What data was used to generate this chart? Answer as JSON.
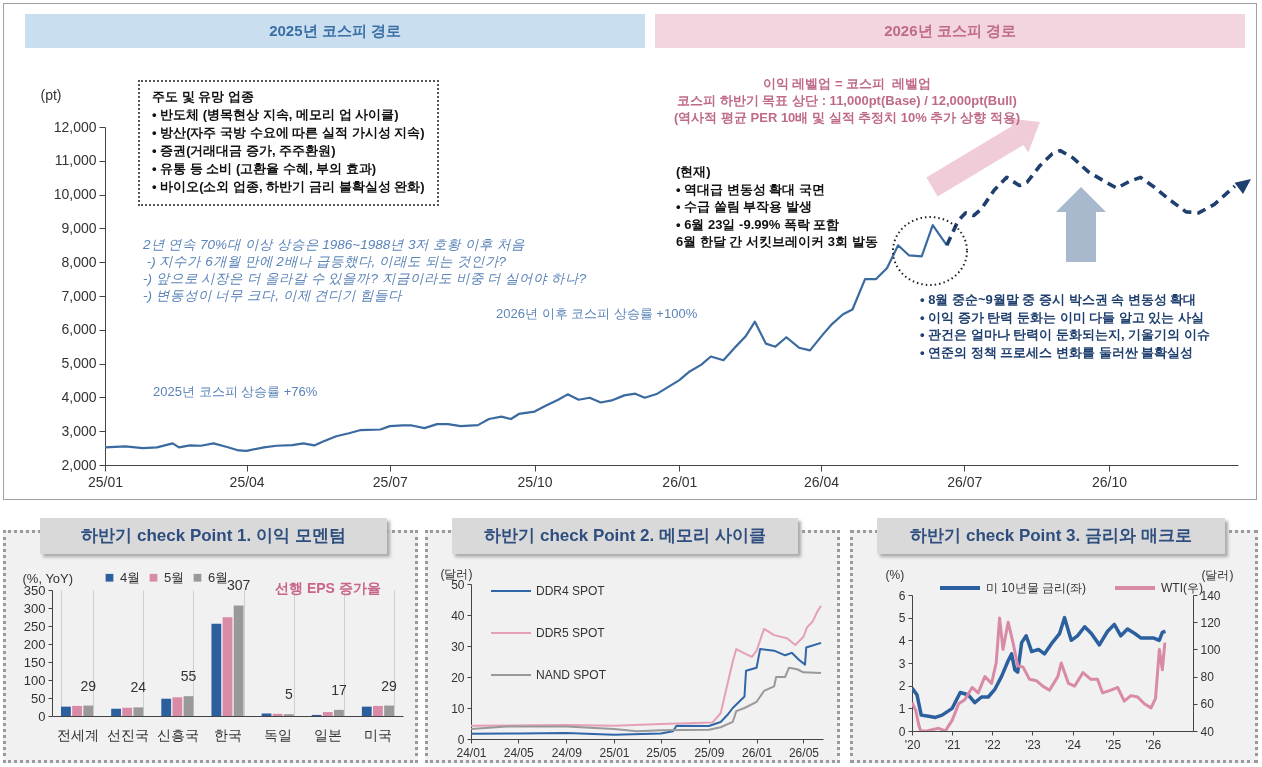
{
  "chart_data": [
    {
      "type": "line",
      "ylabel": "(pt)",
      "series": [
        {
          "color": "#3b6aa0",
          "x": [
            "2025-01-01",
            "2025-01-14",
            "2025-01-25",
            "2025-02-03",
            "2025-02-13",
            "2025-02-17",
            "2025-02-24",
            "2025-03-03",
            "2025-03-11",
            "2025-03-19",
            "2025-03-27",
            "2025-04-01",
            "2025-04-12",
            "2025-04-20",
            "2025-04-30",
            "2025-05-07",
            "2025-05-14",
            "2025-05-20",
            "2025-05-28",
            "2025-06-05",
            "2025-06-12",
            "2025-06-17",
            "2025-06-25",
            "2025-07-01",
            "2025-07-09",
            "2025-07-15",
            "2025-07-23",
            "2025-07-31",
            "2025-08-07",
            "2025-08-15",
            "2025-08-26",
            "2025-09-02",
            "2025-09-10",
            "2025-09-16",
            "2025-09-21",
            "2025-10-01",
            "2025-10-08",
            "2025-10-16",
            "2025-10-22",
            "2025-10-29",
            "2025-11-05",
            "2025-11-12",
            "2025-11-19",
            "2025-11-27",
            "2025-12-04",
            "2025-12-10",
            "2025-12-18",
            "2025-12-25",
            "2026-01-01",
            "2026-01-07",
            "2026-01-15",
            "2026-01-21",
            "2026-01-29",
            "2026-02-06",
            "2026-02-12",
            "2026-02-18",
            "2026-02-25",
            "2026-03-03",
            "2026-03-10",
            "2026-03-18",
            "2026-03-25",
            "2026-04-02",
            "2026-04-08",
            "2026-04-15",
            "2026-04-21",
            "2026-04-29",
            "2026-05-06",
            "2026-05-13",
            "2026-05-20",
            "2026-05-27",
            "2026-06-04",
            "2026-06-11",
            "2026-06-20"
          ],
          "values": [
            2520,
            2550,
            2500,
            2520,
            2640,
            2520,
            2580,
            2570,
            2640,
            2540,
            2430,
            2420,
            2520,
            2570,
            2590,
            2640,
            2580,
            2700,
            2850,
            2940,
            3030,
            3040,
            3050,
            3150,
            3170,
            3170,
            3090,
            3210,
            3210,
            3150,
            3180,
            3360,
            3430,
            3360,
            3510,
            3580,
            3750,
            3930,
            4090,
            3930,
            3990,
            3850,
            3910,
            4060,
            4110,
            3990,
            4110,
            4310,
            4510,
            4750,
            4970,
            5210,
            5100,
            5510,
            5800,
            6240,
            5590,
            5500,
            5780,
            5470,
            5390,
            5850,
            6170,
            6460,
            6600,
            7500,
            7500,
            7830,
            8500,
            8200,
            8170,
            9100,
            8500
          ]
        },
        {
          "color": "#1f3f6e",
          "line_style": "dashed",
          "x": [
            "2026-06-20",
            "2026-06-27",
            "2026-07-02",
            "2026-07-07",
            "2026-07-12",
            "2026-07-20",
            "2026-07-28",
            "2026-08-05",
            "2026-08-10",
            "2026-08-18",
            "2026-08-26",
            "2026-08-31",
            "2026-09-08",
            "2026-09-18",
            "2026-09-29",
            "2026-10-06",
            "2026-10-14",
            "2026-10-21",
            "2026-10-29",
            "2026-11-09",
            "2026-11-19",
            "2026-11-27",
            "2026-12-07",
            "2026-12-20"
          ],
          "values": [
            8500,
            9220,
            9460,
            9380,
            9580,
            10130,
            10510,
            10270,
            10370,
            10850,
            11210,
            11300,
            11090,
            10670,
            10370,
            10190,
            10390,
            10510,
            10250,
            9830,
            9490,
            9460,
            9710,
            10250
          ]
        }
      ],
      "xlim": [
        "2025-01-01",
        "2026-12-22"
      ],
      "xticks": [
        {
          "value": "2025-01",
          "label": "25/01"
        },
        {
          "value": "2025-04",
          "label": "25/04"
        },
        {
          "value": "2025-07",
          "label": "25/07"
        },
        {
          "value": "2025-10",
          "label": "25/10"
        },
        {
          "value": "2026-01",
          "label": "26/01"
        },
        {
          "value": "2026-04",
          "label": "26/04"
        },
        {
          "value": "2026-07",
          "label": "26/07"
        },
        {
          "value": "2026-10",
          "label": "26/10"
        }
      ],
      "ylim": [
        2000,
        12000
      ],
      "yticks": [
        {
          "value": 2000,
          "label": "2,000"
        },
        {
          "value": 3000,
          "label": "3,000"
        },
        {
          "value": 4000,
          "label": "4,000"
        },
        {
          "value": 5000,
          "label": "5,000"
        },
        {
          "value": 6000,
          "label": "6,000"
        },
        {
          "value": 7000,
          "label": "7,000"
        },
        {
          "value": 8000,
          "label": "8,000"
        },
        {
          "value": 9000,
          "label": "9,000"
        },
        {
          "value": 10000,
          "label": "10,000"
        },
        {
          "value": 11000,
          "label": "11,000"
        },
        {
          "value": 12000,
          "label": "12,000"
        }
      ],
      "annotations": [
        "2025년 코스피 경로",
        "2026년 코스피 경로",
        "주도 및 유망 업종\n• 반도체 (병목현상 지속, 메모리 업 사이클)\n• 방산(자주 국방 수요에 따른 실적 가시성 지속)\n• 증권(거래대금 증가, 주주환원)\n• 유통 등 소비 (고환율 수혜, 부의 효과)\n• 바이오(소외 업종, 하반기 금리 불확실성 완화)",
        "2년 연속 70%대 이상 상승은 1986~1988년 3저 호황 이후 처음\n -) 지수가 6개월 만에 2배나 급등했다, 이래도 되는 것인가?\n-) 앞으로 시장은 더 올라갈 수 있을까? 지금이라도 비중 더 실어야 하나?\n-) 변동성이 너무 크다, 이제 견디기 힘들다",
        "2025년 코스피 상승률 +76%",
        "2026년 이후 코스피 상승률 +100%",
        "이익 레벨업 = 코스피  레벨업\n코스피 하반기 목표 상단 : 11,000pt(Base) / 12,000pt(Bull)\n(역사적 평균 PER 10배 및 실적 추정치 10% 추가 상향 적용)",
        "(현재)\n• 역대급 변동성 확대 국면\n• 수급 쏠림 부작용 발생\n• 6월 23일 -9.99% 폭락 포함\n6월 한달 간 서킷브레이커 3회 발동",
        "• 8월 중순~9월말 중 증시 박스권 속 변동성 확대\n• 이익 증가 탄력 둔화는 이미 다들 알고 있는 사실\n• 관건은 얼마나 탄력이 둔화되는지, 기울기의 이슈\n• 연준의 정책 프로세스 변화를 둘러싼 불확실성"
      ]
    },
    {
      "type": "bar",
      "title": "하반기 check Point 1. 이익 모멘텀",
      "ylabel": "(%, YoY)",
      "categories": [
        "전세계",
        "선진국",
        "신흥국",
        "한국",
        "독일",
        "일본",
        "미국"
      ],
      "series": [
        {
          "name": "4월",
          "color": "#2b5f9e",
          "values": [
            26,
            20,
            48,
            256,
            7,
            3,
            26
          ]
        },
        {
          "name": "5월",
          "color": "#d98aa6",
          "values": [
            28,
            23,
            52,
            274,
            6,
            11,
            28
          ]
        },
        {
          "name": "6월",
          "color": "#999999",
          "values": [
            29,
            24,
            55,
            307,
            5,
            17,
            29
          ],
          "value_labels": [
            "29",
            "24",
            "55",
            "307",
            "5",
            "17",
            "29"
          ]
        }
      ],
      "ylim": [
        0,
        350
      ],
      "yticks": [
        0,
        50,
        100,
        150,
        200,
        250,
        300,
        350
      ],
      "grid": "x",
      "legend": "top",
      "annotations": [
        "선행 EPS 증가율"
      ]
    },
    {
      "type": "line",
      "title": "하반기 check Point 2. 메모리 사이클",
      "ylabel": "(달러)",
      "series": [
        {
          "name": "DDR4 SPOT",
          "color": "#2e66a8",
          "x": [
            "2024-01-01",
            "2024-05-01",
            "2024-09-01",
            "2025-01-01",
            "2025-05-01",
            "2025-06-01",
            "2025-06-10",
            "2025-09-01",
            "2025-10-01",
            "2025-10-20",
            "2025-11-01",
            "2025-12-01",
            "2025-12-05",
            "2026-01-01",
            "2026-01-10",
            "2026-02-15",
            "2026-03-15",
            "2026-04-01",
            "2026-04-20",
            "2026-05-05",
            "2026-05-08",
            "2026-06-15"
          ],
          "values": [
            1.7,
            1.8,
            1.9,
            1.4,
            1.8,
            2.5,
            4.3,
            4.2,
            5.5,
            8,
            10,
            13.7,
            22,
            23,
            29,
            28.5,
            27,
            27.8,
            25.5,
            24,
            29.5,
            31
          ]
        },
        {
          "name": "DDR5 SPOT",
          "color": "#e5a0b5",
          "x": [
            "2024-01-01",
            "2024-09-01",
            "2025-01-01",
            "2025-05-01",
            "2025-09-10",
            "2025-10-01",
            "2025-11-01",
            "2025-11-10",
            "2025-12-01",
            "2025-12-20",
            "2026-01-01",
            "2026-01-20",
            "2026-02-15",
            "2026-03-20",
            "2026-04-10",
            "2026-05-01",
            "2026-05-10",
            "2026-05-25",
            "2026-06-05",
            "2026-06-15"
          ],
          "values": [
            4.3,
            4.5,
            4.3,
            4.8,
            5.3,
            8.3,
            25,
            29,
            27.6,
            26.5,
            28.5,
            35.5,
            33.5,
            32.5,
            30.3,
            33,
            36,
            38,
            41,
            43
          ]
        },
        {
          "name": "NAND SPOT",
          "color": "#999999",
          "x": [
            "2024-01-01",
            "2024-04-01",
            "2024-09-01",
            "2025-01-01",
            "2025-03-01",
            "2025-05-01",
            "2025-09-01",
            "2025-10-01",
            "2025-11-01",
            "2025-11-10",
            "2025-12-01",
            "2026-01-01",
            "2026-01-20",
            "2026-02-15",
            "2026-02-20",
            "2026-03-15",
            "2026-03-25",
            "2026-04-15",
            "2026-05-01",
            "2026-06-15"
          ],
          "values": [
            3.2,
            4.0,
            4.0,
            3.2,
            2.5,
            2.8,
            3.0,
            3.8,
            5.5,
            9,
            10,
            12,
            15.5,
            17,
            20,
            20,
            23,
            22.5,
            21.5,
            21.3
          ]
        }
      ],
      "xlim": [
        "2024-01-01",
        "2026-06-20"
      ],
      "xticks": [
        {
          "value": "2024-01",
          "label": "24/01"
        },
        {
          "value": "2024-05",
          "label": "24/05"
        },
        {
          "value": "2024-09",
          "label": "24/09"
        },
        {
          "value": "2025-01",
          "label": "25/01"
        },
        {
          "value": "2025-05",
          "label": "25/05"
        },
        {
          "value": "2025-09",
          "label": "25/09"
        },
        {
          "value": "2026-01",
          "label": "26/01"
        },
        {
          "value": "2026-05",
          "label": "26/05"
        }
      ],
      "ylim": [
        0,
        50
      ],
      "yticks": [
        0,
        10,
        20,
        30,
        40,
        50
      ],
      "legend": "top left"
    },
    {
      "type": "line",
      "title": "하반기 check Point 3. 금리와 매크로",
      "ylabel": "(%)",
      "y2label": "(달러)",
      "series": [
        {
          "name": "미 10년물 금리(좌)",
          "color": "#2b5f9e",
          "x": [
            "2020-01-01",
            "2020-02-15",
            "2020-03-25",
            "2020-06-01",
            "2020-08-01",
            "2020-10-01",
            "2021-01-01",
            "2021-03-15",
            "2021-05-25",
            "2021-07-25",
            "2021-09-25",
            "2021-11-25",
            "2022-01-25",
            "2022-03-25",
            "2022-05-25",
            "2022-06-25",
            "2022-07-25",
            "2022-08-20",
            "2022-09-25",
            "2022-11-05",
            "2022-12-25",
            "2023-02-25",
            "2023-04-20",
            "2023-07-01",
            "2023-09-05",
            "2023-10-20",
            "2023-12-20",
            "2024-02-15",
            "2024-04-20",
            "2024-06-20",
            "2024-09-01",
            "2024-11-15",
            "2025-01-15",
            "2025-03-15",
            "2025-05-15",
            "2025-07-20",
            "2025-09-15",
            "2025-11-15",
            "2026-01-10",
            "2026-02-28",
            "2026-03-28",
            "2026-04-25"
          ],
          "values": [
            1.9,
            1.6,
            0.7,
            0.65,
            0.6,
            0.7,
            1.0,
            1.7,
            1.6,
            1.25,
            1.5,
            1.5,
            1.85,
            2.4,
            3.1,
            3.4,
            2.7,
            2.6,
            3.9,
            4.2,
            3.5,
            3.6,
            3.4,
            3.9,
            4.3,
            5.0,
            4.0,
            4.2,
            4.6,
            4.3,
            3.8,
            4.4,
            4.7,
            4.2,
            4.5,
            4.3,
            4.1,
            4.1,
            4.1,
            4.0,
            4.35,
            4.4
          ]
        },
        {
          "name": "WTI(우)",
          "color": "#d98aa6",
          "axis": "y2",
          "x": [
            "2020-01-01",
            "2020-02-05",
            "2020-03-01",
            "2020-03-20",
            "2020-05-20",
            "2020-07-01",
            "2020-08-30",
            "2020-10-30",
            "2021-01-01",
            "2021-03-01",
            "2021-04-25",
            "2021-07-01",
            "2021-08-25",
            "2021-10-25",
            "2021-12-25",
            "2022-02-05",
            "2022-03-08",
            "2022-04-08",
            "2022-05-25",
            "2022-07-08",
            "2022-08-20",
            "2022-10-08",
            "2022-12-05",
            "2023-02-05",
            "2023-04-05",
            "2023-06-05",
            "2023-08-20",
            "2023-09-20",
            "2023-11-25",
            "2024-01-20",
            "2024-04-05",
            "2024-06-15",
            "2024-08-15",
            "2024-10-01",
            "2024-12-15",
            "2025-02-15",
            "2025-04-15",
            "2025-06-15",
            "2025-08-15",
            "2025-10-15",
            "2025-12-15",
            "2026-01-25",
            "2026-03-01",
            "2026-03-28",
            "2026-04-20"
          ],
          "values": [
            61,
            55,
            45,
            40,
            40,
            41,
            42,
            40,
            48,
            60,
            63,
            72,
            68,
            80,
            75,
            90,
            123,
            100,
            120,
            105,
            88,
            87,
            78,
            77,
            73,
            70,
            80,
            90,
            75,
            73,
            83,
            78,
            78,
            68,
            70,
            72,
            62,
            66,
            65,
            60,
            57,
            64,
            100,
            85,
            105
          ]
        }
      ],
      "xlim": [
        "2020-01-01",
        "2027-01-01"
      ],
      "xticks": [
        {
          "value": "2020",
          "label": "'20"
        },
        {
          "value": "2021",
          "label": "'21"
        },
        {
          "value": "2022",
          "label": "'22"
        },
        {
          "value": "2023",
          "label": "'23"
        },
        {
          "value": "2024",
          "label": "'24"
        },
        {
          "value": "2025",
          "label": "'25"
        },
        {
          "value": "2026",
          "label": "'26"
        }
      ],
      "ylim": [
        0,
        6
      ],
      "yticks": [
        0,
        1,
        2,
        3,
        4,
        5,
        6
      ],
      "y2lim": [
        40,
        140
      ],
      "y2ticks": [
        40,
        60,
        80,
        100,
        120,
        140
      ],
      "legend": "top"
    }
  ]
}
